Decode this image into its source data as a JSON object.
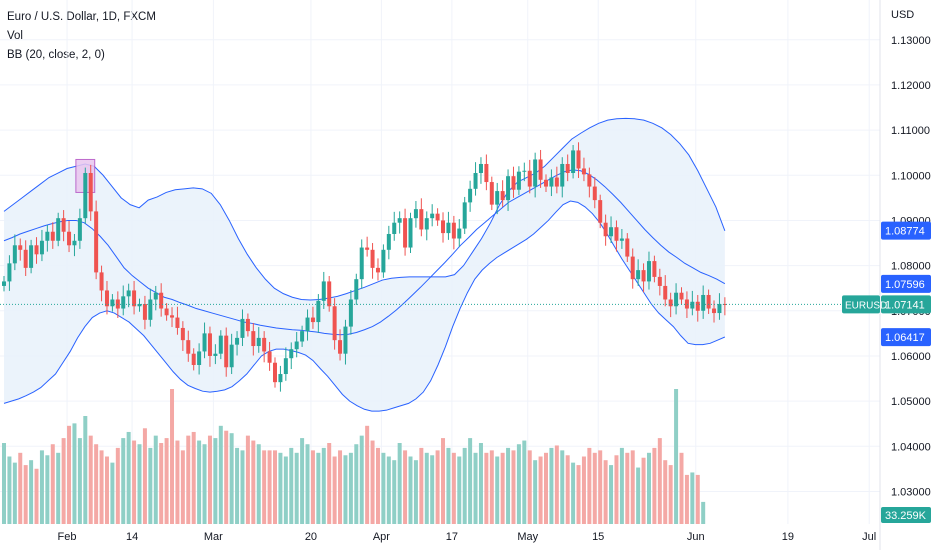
{
  "legend": {
    "symbol_line": "Euro / U.S. Dollar, 1D, FXCM",
    "volume_label": "Vol",
    "bb_label": "BB (20, close, 2, 0)"
  },
  "currency": "USD",
  "colors": {
    "up": "#26a69a",
    "down": "#ef5350",
    "up_volume": "#8fcfc6",
    "down_volume": "#f4a8a5",
    "bands": "#2962ff",
    "band_fill": "#e9f2fb",
    "highlight_fill": "#e9c6ef",
    "highlight_border": "#b24fc3",
    "last_price_line": "#26a69a",
    "grid": "#f0f3fa"
  },
  "chart_data": {
    "type": "candlestick",
    "y_axis": {
      "ticks": [
        "1.13000",
        "1.12000",
        "1.11000",
        "1.10000",
        "1.09000",
        "1.08000",
        "1.07000",
        "1.06000",
        "1.05000",
        "1.04000",
        "1.03000"
      ],
      "range": [
        1.0228,
        1.1388
      ]
    },
    "x_axis": {
      "ticks": [
        "Feb",
        "14",
        "Mar",
        "20",
        "Apr",
        "17",
        "May",
        "15",
        "Jun",
        "19",
        "Jul"
      ]
    },
    "price_labels": [
      {
        "name": "bb-upper",
        "value": 1.08774,
        "text": "1.08774",
        "color": "#2962ff"
      },
      {
        "name": "bb-basis",
        "value": 1.07596,
        "text": "1.07596",
        "color": "#2962ff"
      },
      {
        "name": "last-price",
        "value": 1.07141,
        "text": "1.07141",
        "color": "#26a69a",
        "tag": "EURUSD"
      },
      {
        "name": "bb-lower",
        "value": 1.06417,
        "text": "1.06417",
        "color": "#2962ff"
      }
    ],
    "volume_label": "33.259K",
    "highlight_box": {
      "x_start_index": 14,
      "x_end_index": 16,
      "y_range": [
        1.0962,
        1.1035
      ]
    },
    "closes": [
      1.0765,
      1.0805,
      1.0845,
      1.0835,
      1.0795,
      1.0845,
      1.0825,
      1.0855,
      1.0875,
      1.0855,
      1.0905,
      1.0875,
      1.0845,
      1.0855,
      1.0905,
      1.1005,
      1.092,
      1.0785,
      1.0745,
      1.071,
      1.0725,
      1.0705,
      1.0732,
      1.0745,
      1.071,
      1.0715,
      1.068,
      1.0725,
      1.074,
      1.0705,
      1.069,
      1.0685,
      1.0662,
      1.0635,
      1.0605,
      1.058,
      1.061,
      1.065,
      1.06,
      1.0605,
      1.0645,
      1.0575,
      1.0625,
      1.064,
      1.0682,
      1.0655,
      1.0622,
      1.064,
      1.061,
      1.0585,
      1.0542,
      1.056,
      1.0595,
      1.0615,
      1.0632,
      1.0655,
      1.0685,
      1.0675,
      1.0722,
      1.0765,
      1.071,
      1.0635,
      1.0605,
      1.0665,
      1.0725,
      1.077,
      1.084,
      1.0835,
      1.0795,
      1.0785,
      1.0835,
      1.087,
      1.0895,
      1.0905,
      1.084,
      1.0905,
      1.0925,
      1.088,
      1.0905,
      1.0915,
      1.09,
      1.0872,
      1.0895,
      1.086,
      1.0882,
      1.094,
      1.097,
      1.1005,
      1.1025,
      1.0985,
      1.0935,
      1.0965,
      1.0945,
      1.0998,
      1.0968,
      1.1008,
      1.101,
      1.0975,
      1.1035,
      1.099,
      1.0975,
      1.0995,
      1.0975,
      1.1025,
      1.1005,
      1.1055,
      1.1015,
      1.1002,
      1.0975,
      1.0945,
      1.0895,
      1.0865,
      1.0885,
      1.0855,
      1.086,
      1.082,
      1.077,
      1.079,
      1.0765,
      1.081,
      1.0775,
      1.0755,
      1.0725,
      1.071,
      1.074,
      1.0725,
      1.0705,
      1.072,
      1.07,
      1.0735,
      1.0705,
      1.0695,
      1.0715,
      1.0714
    ],
    "upper_band": [
      1.092,
      1.0935,
      1.095,
      1.0965,
      1.098,
      1.0995,
      1.1005,
      1.1015,
      1.102,
      1.1025,
      1.102,
      1.1,
      1.0975,
      1.095,
      1.0935,
      1.0928,
      1.0945,
      1.0952,
      1.0962,
      1.0968,
      1.097,
      1.0972,
      1.097,
      1.096,
      1.0935,
      1.09,
      1.086,
      1.0825,
      1.0795,
      1.077,
      1.075,
      1.0738,
      1.073,
      1.0725,
      1.0724,
      1.0725,
      1.0728,
      1.0732,
      1.0738,
      1.0745,
      1.0752,
      1.076,
      1.0768,
      1.0772,
      1.0774,
      1.0775,
      1.0775,
      1.0775,
      1.0775,
      1.0775,
      1.078,
      1.08,
      1.083,
      1.086,
      1.0895,
      1.0935,
      1.0965,
      1.0985,
      1.0995,
      1.1005,
      1.102,
      1.104,
      1.106,
      1.108,
      1.1093,
      1.1105,
      1.1115,
      1.1122,
      1.1125,
      1.1126,
      1.1125,
      1.1122,
      1.1115,
      1.1105,
      1.109,
      1.107,
      1.1045,
      1.101,
      1.097,
      1.093,
      1.0877
    ],
    "basis": [
      1.0855,
      1.0862,
      1.087,
      1.0876,
      1.0882,
      1.0888,
      1.0893,
      1.0897,
      1.09,
      1.09,
      1.0895,
      1.0882,
      1.0865,
      1.0845,
      1.082,
      1.0795,
      1.0778,
      1.0764,
      1.075,
      1.074,
      1.073,
      1.0725,
      1.0718,
      1.0712,
      1.0705,
      1.07,
      1.0695,
      1.069,
      1.0685,
      1.068,
      1.0675,
      1.0672,
      1.0668,
      1.0665,
      1.0662,
      1.066,
      1.0658,
      1.0657,
      1.0655,
      1.0653,
      1.065,
      1.0648,
      1.0647,
      1.0648,
      1.0652,
      1.0658,
      1.0665,
      1.0675,
      1.0688,
      1.0702,
      1.0718,
      1.0735,
      1.0752,
      1.077,
      1.0788,
      1.0806,
      1.0825,
      1.0845,
      1.0862,
      1.088,
      1.0895,
      1.091,
      1.0925,
      1.094,
      1.095,
      1.096,
      1.097,
      1.098,
      1.099,
      1.1,
      1.1008,
      1.1012,
      1.101,
      1.1002,
      1.099,
      1.0975,
      1.0958,
      1.094,
      1.092,
      1.09,
      1.088,
      1.0862,
      1.0845,
      1.083,
      1.0818,
      1.0805,
      1.0795,
      1.0785,
      1.0778,
      1.077,
      1.076
    ],
    "lower_band": [
      1.0495,
      1.05,
      1.0505,
      1.0512,
      1.052,
      1.053,
      1.0545,
      1.056,
      1.0585,
      1.061,
      1.064,
      1.0665,
      1.0685,
      1.0695,
      1.07,
      1.0695,
      1.0685,
      1.0675,
      1.066,
      1.0645,
      1.0625,
      1.0605,
      1.0585,
      1.0565,
      1.0548,
      1.0535,
      1.0528,
      1.0522,
      1.052,
      1.0522,
      1.0525,
      1.0532,
      1.0545,
      1.056,
      1.058,
      1.06,
      1.061,
      1.0615,
      1.0615,
      1.0612,
      1.0608,
      1.0602,
      1.059,
      1.0572,
      1.0555,
      1.0535,
      1.0515,
      1.05,
      1.049,
      1.0482,
      1.0478,
      1.0478,
      1.048,
      1.0485,
      1.049,
      1.0495,
      1.0505,
      1.052,
      1.0545,
      1.058,
      1.062,
      1.0665,
      1.0705,
      1.074,
      1.077,
      1.079,
      1.0805,
      1.0818,
      1.0828,
      1.0838,
      1.0848,
      1.0858,
      1.087,
      1.0885,
      1.09,
      1.0918,
      1.0935,
      1.0943,
      1.094,
      1.093,
      1.0915,
      1.0895,
      1.087,
      1.0842,
      1.0815,
      1.079,
      1.0765,
      1.074,
      1.0715,
      1.0695,
      1.068,
      1.0665,
      1.0645,
      1.0628,
      1.0625,
      1.0625,
      1.0628,
      1.0635,
      1.0642
    ],
    "volumes": [
      66,
      55,
      50,
      58,
      48,
      52,
      45,
      60,
      56,
      65,
      58,
      70,
      80,
      82,
      70,
      88,
      72,
      65,
      60,
      55,
      50,
      62,
      70,
      75,
      68,
      65,
      78,
      62,
      72,
      66,
      70,
      110,
      68,
      60,
      72,
      75,
      68,
      65,
      72,
      70,
      80,
      76,
      74,
      62,
      60,
      72,
      68,
      65,
      60,
      60,
      60,
      58,
      55,
      62,
      58,
      70,
      65,
      60,
      58,
      62,
      66,
      55,
      60,
      56,
      58,
      65,
      72,
      80,
      68,
      62,
      58,
      55,
      52,
      66,
      60,
      55,
      52,
      62,
      58,
      56,
      60,
      70,
      62,
      58,
      55,
      62,
      70,
      58,
      66,
      58,
      60,
      55,
      58,
      62,
      60,
      65,
      68,
      60,
      52,
      55,
      58,
      62,
      64,
      60,
      56,
      50,
      48,
      55,
      62,
      58,
      60,
      52,
      48,
      56,
      62,
      58,
      60,
      46,
      54,
      58,
      62,
      70,
      52,
      48,
      110,
      58,
      40,
      42,
      40,
      18
    ]
  }
}
